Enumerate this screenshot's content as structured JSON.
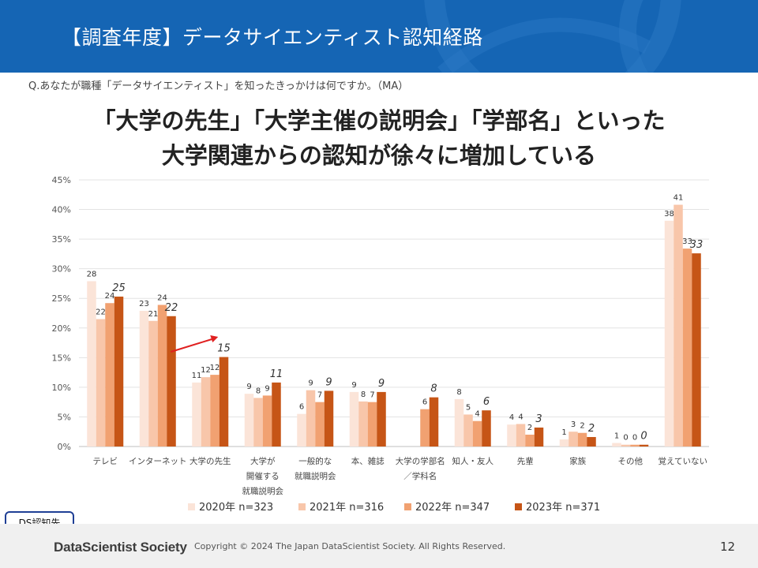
{
  "header": {
    "title": "【調査年度】データサイエンティスト認知経路"
  },
  "question": "Q.あなたが職種「データサイエンティスト」を知ったきっかけは何ですか。（MA）",
  "headline": {
    "line1": "「大学の先生」「大学主催の説明会」「学部名」といった",
    "line2": "大学関連からの認知が徐々に増加している"
  },
  "badge": "DS認知先",
  "footer": {
    "logo": "DataScientist Society",
    "copyright": "Copyright © 2024  The Japan DataScientist Society. All Rights Reserved.",
    "page": "12"
  },
  "colors": {
    "header": "#1565b4",
    "series": [
      "#fbe4d8",
      "#f8c6aa",
      "#f1a171",
      "#c65516"
    ],
    "arrow": "#e02020",
    "badge_border": "#1f3f95"
  },
  "chart_data": {
    "type": "bar",
    "ylim": [
      0,
      45
    ],
    "yticks": [
      "0%",
      "5%",
      "10%",
      "15%",
      "20%",
      "25%",
      "30%",
      "35%",
      "40%",
      "45%"
    ],
    "categories": [
      [
        "テレビ"
      ],
      [
        "インターネット"
      ],
      [
        "大学の先生"
      ],
      [
        "大学が",
        "開催する",
        "就職説明会"
      ],
      [
        "一般的な",
        "就職説明会"
      ],
      [
        "本、雑誌"
      ],
      [
        "大学の学部名",
        "／学科名"
      ],
      [
        "知人・友人"
      ],
      [
        "先輩"
      ],
      [
        "家族"
      ],
      [
        "その他"
      ],
      [
        "覚えていない"
      ]
    ],
    "series": [
      {
        "name": "2020年 n=323",
        "values": [
          27.9,
          22.9,
          10.8,
          8.9,
          5.5,
          9.2,
          null,
          8.0,
          3.7,
          1.2,
          0.6,
          38.1
        ],
        "labels": [
          "28",
          "23",
          "11",
          "9",
          "6",
          "9",
          "",
          "8",
          "4",
          "1",
          "1",
          "38"
        ]
      },
      {
        "name": "2021年 n=316",
        "values": [
          21.5,
          21.2,
          11.7,
          8.2,
          9.5,
          7.6,
          null,
          5.4,
          3.8,
          2.5,
          0.3,
          40.8
        ],
        "labels": [
          "22",
          "21",
          "12",
          "8",
          "9",
          "8",
          "",
          "5",
          "4",
          "3",
          "0",
          "41"
        ]
      },
      {
        "name": "2022年 n=347",
        "values": [
          24.2,
          23.9,
          12.1,
          8.6,
          7.5,
          7.5,
          6.3,
          4.3,
          2.0,
          2.3,
          0.3,
          33.4
        ],
        "labels": [
          "24",
          "24",
          "12",
          "9",
          "7",
          "7",
          "6",
          "4",
          "2",
          "2",
          "0",
          "33"
        ]
      },
      {
        "name": "2023年 n=371",
        "values": [
          25.3,
          22.0,
          15.1,
          10.8,
          9.4,
          9.2,
          8.3,
          6.1,
          3.2,
          1.6,
          0.3,
          32.6
        ],
        "labels": [
          "25",
          "22",
          "15",
          "11",
          "9",
          "9",
          "8",
          "6",
          "3",
          "2",
          "0",
          "33"
        ]
      }
    ],
    "highlight_arrow_category": 2,
    "gridlines": true,
    "legend_position": "bottom"
  }
}
